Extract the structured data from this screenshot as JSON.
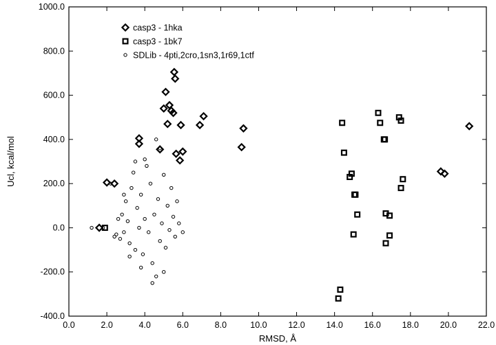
{
  "chart_data": {
    "type": "scatter",
    "xlabel": "RMSD, Å",
    "ylabel": "Ucl, kcal/mol",
    "xlim": [
      0,
      22
    ],
    "ylim": [
      -400,
      1000
    ],
    "xticks": [
      "0.0",
      "2.0",
      "4.0",
      "6.0",
      "8.0",
      "10.0",
      "12.0",
      "14.0",
      "16.0",
      "18.0",
      "20.0",
      "22.0"
    ],
    "yticks": [
      "-400.0",
      "-200.0",
      "0.0",
      "200.0",
      "400.0",
      "600.0",
      "800.0",
      "1000.0"
    ],
    "grid": false,
    "legend_position": "top-left",
    "series": [
      {
        "name": "casp3 - 1hka",
        "marker": "diamond",
        "points": [
          [
            1.6,
            0
          ],
          [
            2.0,
            205
          ],
          [
            2.4,
            200
          ],
          [
            3.7,
            380
          ],
          [
            3.7,
            405
          ],
          [
            4.8,
            355
          ],
          [
            5.0,
            540
          ],
          [
            5.1,
            615
          ],
          [
            5.2,
            470
          ],
          [
            5.3,
            555
          ],
          [
            5.4,
            530
          ],
          [
            5.5,
            520
          ],
          [
            5.55,
            705
          ],
          [
            5.6,
            675
          ],
          [
            5.65,
            335
          ],
          [
            5.9,
            465
          ],
          [
            5.85,
            305
          ],
          [
            6.0,
            345
          ],
          [
            6.9,
            465
          ],
          [
            7.1,
            505
          ],
          [
            9.1,
            365
          ],
          [
            9.2,
            450
          ],
          [
            19.6,
            255
          ],
          [
            19.8,
            245
          ],
          [
            21.1,
            460
          ]
        ]
      },
      {
        "name": "casp3 - 1bk7",
        "marker": "square",
        "points": [
          [
            1.9,
            0
          ],
          [
            14.2,
            -320
          ],
          [
            14.3,
            -280
          ],
          [
            14.4,
            475
          ],
          [
            14.5,
            340
          ],
          [
            14.8,
            230
          ],
          [
            14.9,
            245
          ],
          [
            15.0,
            -30
          ],
          [
            15.05,
            150
          ],
          [
            15.1,
            150
          ],
          [
            15.2,
            60
          ],
          [
            16.3,
            520
          ],
          [
            16.4,
            475
          ],
          [
            16.6,
            400
          ],
          [
            16.65,
            400
          ],
          [
            16.7,
            65
          ],
          [
            16.7,
            -70
          ],
          [
            16.9,
            55
          ],
          [
            16.9,
            -35
          ],
          [
            17.4,
            500
          ],
          [
            17.5,
            485
          ],
          [
            17.5,
            180
          ],
          [
            17.6,
            220
          ]
        ]
      },
      {
        "name": "SDLib - 4pti,2cro,1sn3,1r69,1ctf",
        "marker": "circle",
        "points": [
          [
            1.2,
            0
          ],
          [
            1.8,
            0
          ],
          [
            2.4,
            -40
          ],
          [
            2.5,
            -30
          ],
          [
            2.6,
            40
          ],
          [
            2.7,
            -50
          ],
          [
            2.8,
            60
          ],
          [
            2.9,
            -20
          ],
          [
            3.0,
            120
          ],
          [
            3.1,
            30
          ],
          [
            3.2,
            -70
          ],
          [
            3.3,
            180
          ],
          [
            3.4,
            250
          ],
          [
            3.5,
            -100
          ],
          [
            3.6,
            90
          ],
          [
            3.7,
            0
          ],
          [
            3.8,
            150
          ],
          [
            3.9,
            -120
          ],
          [
            4.0,
            40
          ],
          [
            4.1,
            280
          ],
          [
            4.2,
            -20
          ],
          [
            4.3,
            200
          ],
          [
            4.4,
            -160
          ],
          [
            4.5,
            60
          ],
          [
            4.6,
            -220
          ],
          [
            4.7,
            130
          ],
          [
            4.8,
            -60
          ],
          [
            4.9,
            20
          ],
          [
            5.0,
            240
          ],
          [
            5.1,
            -90
          ],
          [
            5.2,
            100
          ],
          [
            5.3,
            -10
          ],
          [
            5.4,
            180
          ],
          [
            5.5,
            50
          ],
          [
            5.6,
            -40
          ],
          [
            5.7,
            120
          ],
          [
            5.8,
            20
          ],
          [
            6.0,
            -20
          ],
          [
            2.2,
            200
          ],
          [
            2.9,
            150
          ],
          [
            3.5,
            300
          ],
          [
            4.0,
            310
          ],
          [
            4.6,
            400
          ],
          [
            4.8,
            360
          ],
          [
            3.2,
            -130
          ],
          [
            4.4,
            -250
          ],
          [
            5.0,
            -200
          ],
          [
            3.8,
            -180
          ]
        ]
      }
    ]
  }
}
